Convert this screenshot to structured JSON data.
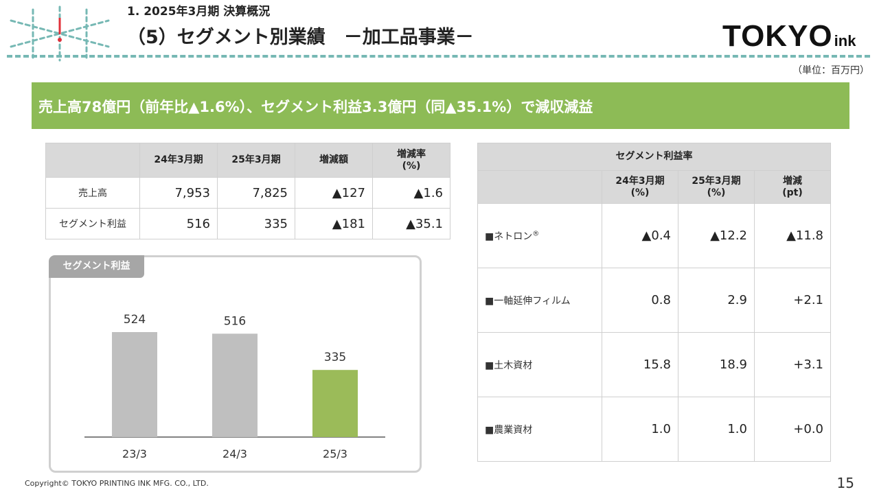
{
  "header": {
    "subtitle": "1. 2025年3月期 決算概況",
    "title": "（5）セグメント別業績　－加工品事業－",
    "brand_main": "TOKYO",
    "brand_sub": "ink",
    "unit_note": "（単位：百万円）",
    "accent_color": "#76b8b4",
    "logo_accent_color": "#e0303a"
  },
  "banner": {
    "text": "売上高78億円（前年比▲1.6%）、セグメント利益3.3億円（同▲35.1%）で減収減益",
    "color": "#8dbb56"
  },
  "summary_table": {
    "columns": [
      "",
      "24年3月期",
      "25年3月期",
      "増減額",
      "増減率\n(%)"
    ],
    "rows": [
      {
        "label": "売上高",
        "values": [
          "7,953",
          "7,825",
          "▲127",
          "▲1.6"
        ]
      },
      {
        "label": "セグメント利益",
        "values": [
          "516",
          "335",
          "▲181",
          "▲35.1"
        ]
      }
    ]
  },
  "chart": {
    "tab_label": "セグメント利益",
    "bar_color_prior": "#bfbfbf",
    "bar_color_current": "#9bbb59"
  },
  "chart_data": {
    "type": "bar",
    "title": "セグメント利益",
    "categories": [
      "23/3",
      "24/3",
      "25/3"
    ],
    "values": [
      524,
      516,
      335
    ],
    "data_labels": [
      "524",
      "516",
      "335"
    ],
    "xlabel": "",
    "ylabel": "",
    "ylim": [
      0,
      524
    ],
    "grid": false
  },
  "margin_table": {
    "caption": "セグメント利益率",
    "columns": [
      "",
      "24年3月期\n(%)",
      "25年3月期\n(%)",
      "増減\n(pt)"
    ],
    "rows": [
      {
        "label": "■ネトロン",
        "sup": "®",
        "values": [
          "▲0.4",
          "▲12.2",
          "▲11.8"
        ]
      },
      {
        "label": "■一軸延伸フィルム",
        "sup": "",
        "values": [
          "0.8",
          "2.9",
          "+2.1"
        ]
      },
      {
        "label": "■土木資材",
        "sup": "",
        "values": [
          "15.8",
          "18.9",
          "+3.1"
        ]
      },
      {
        "label": "■農業資材",
        "sup": "",
        "values": [
          "1.0",
          "1.0",
          "+0.0"
        ]
      }
    ]
  },
  "footer": {
    "copyright": "Copyright© TOKYO PRINTING INK MFG. CO., LTD.",
    "page_number": "15"
  }
}
